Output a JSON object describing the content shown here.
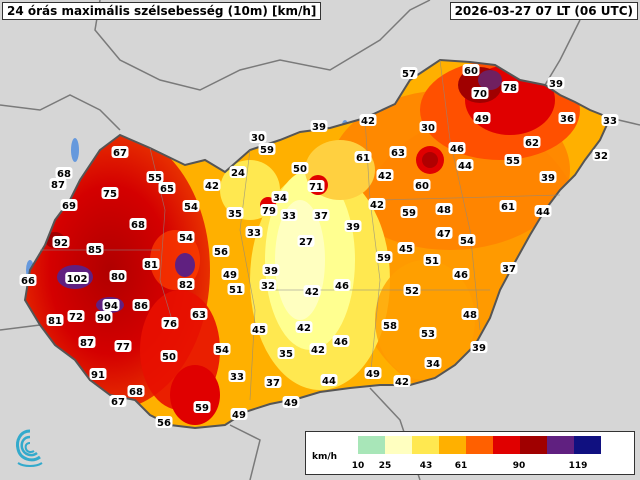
{
  "header": {
    "title": "24 órás maximális szélsebesség (10m) [km/h]",
    "datetime": "2026-03-27 07 LT (06 UTC)"
  },
  "legend": {
    "unit": "km/h",
    "ticks": [
      "10",
      "25",
      "43",
      "61",
      "90",
      "119"
    ],
    "colors": [
      "#a8e6b8",
      "#ffffc0",
      "#ffe850",
      "#ffb000",
      "#ff6000",
      "#e00000",
      "#a00000",
      "#602080",
      "#101080",
      "#ffffff"
    ]
  },
  "map": {
    "country": "Hungary",
    "stations": [
      {
        "v": "57"
      },
      {
        "v": "60"
      },
      {
        "v": "70"
      },
      {
        "v": "78"
      },
      {
        "v": "39"
      },
      {
        "v": "49"
      },
      {
        "v": "36"
      },
      {
        "v": "33"
      },
      {
        "v": "39"
      },
      {
        "v": "42"
      },
      {
        "v": "30"
      },
      {
        "v": "30"
      },
      {
        "v": "59"
      },
      {
        "v": "62"
      },
      {
        "v": "32"
      },
      {
        "v": "67"
      },
      {
        "v": "50"
      },
      {
        "v": "61"
      },
      {
        "v": "63"
      },
      {
        "v": "46"
      },
      {
        "v": "55"
      },
      {
        "v": "68"
      },
      {
        "v": "87"
      },
      {
        "v": "55"
      },
      {
        "v": "24"
      },
      {
        "v": "44"
      },
      {
        "v": "71"
      },
      {
        "v": "42"
      },
      {
        "v": "39"
      },
      {
        "v": "75"
      },
      {
        "v": "65"
      },
      {
        "v": "42"
      },
      {
        "v": "60"
      },
      {
        "v": "69"
      },
      {
        "v": "54"
      },
      {
        "v": "34"
      },
      {
        "v": "79"
      },
      {
        "v": "33"
      },
      {
        "v": "37"
      },
      {
        "v": "42"
      },
      {
        "v": "59"
      },
      {
        "v": "48"
      },
      {
        "v": "61"
      },
      {
        "v": "44"
      },
      {
        "v": "35"
      },
      {
        "v": "68"
      },
      {
        "v": "39"
      },
      {
        "v": "33"
      },
      {
        "v": "54"
      },
      {
        "v": "27"
      },
      {
        "v": "92"
      },
      {
        "v": "85"
      },
      {
        "v": "47"
      },
      {
        "v": "54"
      },
      {
        "v": "56"
      },
      {
        "v": "45"
      },
      {
        "v": "59"
      },
      {
        "v": "51"
      },
      {
        "v": "81"
      },
      {
        "v": "39"
      },
      {
        "v": "46"
      },
      {
        "v": "37"
      },
      {
        "v": "66"
      },
      {
        "v": "102"
      },
      {
        "v": "80"
      },
      {
        "v": "49"
      },
      {
        "v": "82"
      },
      {
        "v": "51"
      },
      {
        "v": "32"
      },
      {
        "v": "42"
      },
      {
        "v": "46"
      },
      {
        "v": "52"
      },
      {
        "v": "94"
      },
      {
        "v": "86"
      },
      {
        "v": "81"
      },
      {
        "v": "72"
      },
      {
        "v": "90"
      },
      {
        "v": "63"
      },
      {
        "v": "76"
      },
      {
        "v": "48"
      },
      {
        "v": "45"
      },
      {
        "v": "42"
      },
      {
        "v": "58"
      },
      {
        "v": "53"
      },
      {
        "v": "87"
      },
      {
        "v": "77"
      },
      {
        "v": "46"
      },
      {
        "v": "42"
      },
      {
        "v": "54"
      },
      {
        "v": "35"
      },
      {
        "v": "39"
      },
      {
        "v": "50"
      },
      {
        "v": "34"
      },
      {
        "v": "91"
      },
      {
        "v": "33"
      },
      {
        "v": "37"
      },
      {
        "v": "44"
      },
      {
        "v": "49"
      },
      {
        "v": "42"
      },
      {
        "v": "68"
      },
      {
        "v": "67"
      },
      {
        "v": "59"
      },
      {
        "v": "49"
      },
      {
        "v": "49"
      },
      {
        "v": "56"
      }
    ]
  }
}
